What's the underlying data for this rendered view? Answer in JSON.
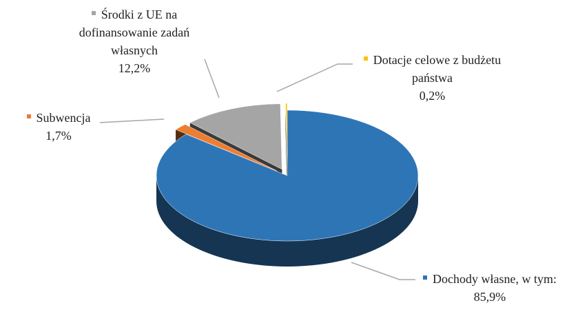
{
  "chart_data": {
    "type": "pie",
    "categories": [
      "Dochody własne, w tym:",
      "Subwencja",
      "Środki z UE na dofinansowanie zadań własnych",
      "Dotacje celowe z budżetu państwa"
    ],
    "values": [
      85.9,
      1.7,
      12.2,
      0.2
    ],
    "value_labels": [
      "85,9%",
      "1,7%",
      "12,2%",
      "0,2%"
    ],
    "colors": [
      "#2e75b6",
      "#ed7d31",
      "#a5a5a5",
      "#ffc000"
    ]
  }
}
